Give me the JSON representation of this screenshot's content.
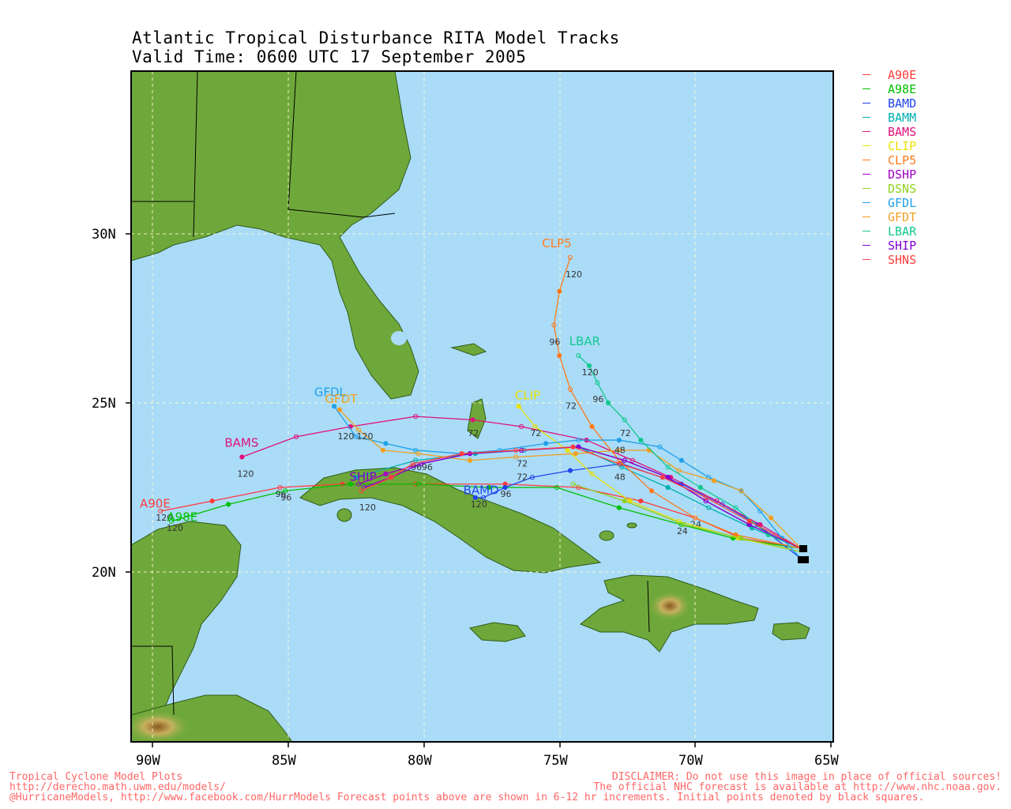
{
  "title_line1": "Atlantic Tropical Disturbance RITA Model Tracks",
  "title_line2": "Valid Time: 0600 UTC 17 September 2005",
  "colors": {
    "ocean": "#aadcf8",
    "land": "#6fa83a",
    "land_dark": "#4f8a2a",
    "highland": "#c8d890",
    "frame": "#000000"
  },
  "axes": {
    "lon_ticks": [
      "90W",
      "85W",
      "80W",
      "75W",
      "70W",
      "65W"
    ],
    "lat_ticks": [
      "30N",
      "25N",
      "20N"
    ]
  },
  "models": [
    {
      "name": "A90E",
      "color": "#ff3b3b"
    },
    {
      "name": "A98E",
      "color": "#00c000"
    },
    {
      "name": "BAMD",
      "color": "#2244ee"
    },
    {
      "name": "BAMM",
      "color": "#00b0b0"
    },
    {
      "name": "BAMS",
      "color": "#e0107a"
    },
    {
      "name": "CLIP",
      "color": "#e8e000"
    },
    {
      "name": "CLP5",
      "color": "#ff7a1a"
    },
    {
      "name": "DSHP",
      "color": "#a000c0"
    },
    {
      "name": "DSNS",
      "color": "#90d020"
    },
    {
      "name": "GFDL",
      "color": "#20a0e8"
    },
    {
      "name": "GFDT",
      "color": "#f0a020"
    },
    {
      "name": "LBAR",
      "color": "#10c890"
    },
    {
      "name": "SHIP",
      "color": "#8000d0"
    },
    {
      "name": "SHNS",
      "color": "#ff4040"
    }
  ],
  "map_data": {
    "tracks": [
      {
        "model": "A90E",
        "color": "#ff3b3b",
        "points": [
          [
            -66.1,
            20.7
          ],
          [
            -68.3,
            21.0
          ],
          [
            -70.0,
            21.6
          ],
          [
            -72.0,
            22.1
          ],
          [
            -74.3,
            22.5
          ],
          [
            -77.0,
            22.6
          ],
          [
            -80.3,
            22.6
          ],
          [
            -83.0,
            22.6
          ],
          [
            -85.3,
            22.5
          ],
          [
            -87.8,
            22.1
          ],
          [
            -89.7,
            21.8
          ]
        ],
        "tau_labels": [
          [
            "24",
            -70.0,
            21.6
          ],
          [
            "96",
            -85.3,
            22.5
          ],
          [
            "120",
            -89.7,
            21.8
          ]
        ]
      },
      {
        "model": "A98E",
        "color": "#00c000",
        "points": [
          [
            -66.1,
            20.7
          ],
          [
            -68.6,
            21.0
          ],
          [
            -70.5,
            21.4
          ],
          [
            -72.8,
            21.9
          ],
          [
            -75.1,
            22.5
          ],
          [
            -77.6,
            22.5
          ],
          [
            -80.2,
            22.6
          ],
          [
            -82.7,
            22.6
          ],
          [
            -85.1,
            22.4
          ],
          [
            -87.2,
            22.0
          ],
          [
            -89.3,
            21.5
          ]
        ],
        "tau_labels": [
          [
            "24",
            -70.5,
            21.4
          ],
          [
            "96",
            -85.1,
            22.4
          ],
          [
            "120",
            -89.3,
            21.5
          ]
        ]
      },
      {
        "model": "BAMD",
        "color": "#2244ee",
        "points": [
          [
            -66.1,
            20.4
          ],
          [
            -67.7,
            21.4
          ],
          [
            -69.0,
            22.0
          ],
          [
            -70.5,
            22.6
          ],
          [
            -72.7,
            23.2
          ],
          [
            -74.6,
            23.0
          ],
          [
            -76.0,
            22.8
          ],
          [
            -77.0,
            22.5
          ],
          [
            -77.8,
            22.2
          ],
          [
            -78.1,
            22.2
          ]
        ],
        "tau_labels": [
          [
            "96",
            -77.0,
            22.5
          ],
          [
            "120",
            -78.1,
            22.2
          ]
        ],
        "label": [
          "BAMD",
          -77.9,
          22.3
        ]
      },
      {
        "model": "BAMM",
        "color": "#00b0b0",
        "points": [
          [
            -66.1,
            20.7
          ],
          [
            -67.9,
            21.3
          ],
          [
            -69.5,
            21.9
          ],
          [
            -71.0,
            22.5
          ],
          [
            -72.7,
            23.1
          ],
          [
            -74.3,
            23.7
          ],
          [
            -76.3,
            23.6
          ],
          [
            -78.1,
            23.5
          ],
          [
            -80.3,
            23.3
          ],
          [
            -82.5,
            22.8
          ]
        ],
        "tau_labels": []
      },
      {
        "model": "BAMS",
        "color": "#e0107a",
        "points": [
          [
            -66.1,
            20.7
          ],
          [
            -67.6,
            21.4
          ],
          [
            -69.2,
            22.1
          ],
          [
            -70.9,
            22.8
          ],
          [
            -72.3,
            23.3
          ],
          [
            -74.0,
            23.9
          ],
          [
            -76.4,
            24.3
          ],
          [
            -78.2,
            24.5
          ],
          [
            -80.3,
            24.6
          ],
          [
            -82.7,
            24.3
          ],
          [
            -84.7,
            24.0
          ],
          [
            -86.7,
            23.4
          ]
        ],
        "tau_labels": [
          [
            "72",
            -78.2,
            24.3
          ],
          [
            "120",
            -86.7,
            23.1
          ]
        ],
        "label": [
          "BAMS",
          -86.7,
          23.7
        ]
      },
      {
        "model": "CLIP",
        "color": "#e8e000",
        "points": [
          [
            -66.1,
            20.6
          ],
          [
            -68.4,
            21.0
          ],
          [
            -70.6,
            21.5
          ],
          [
            -72.4,
            22.1
          ],
          [
            -73.8,
            22.9
          ],
          [
            -74.7,
            23.6
          ],
          [
            -75.9,
            24.3
          ],
          [
            -76.5,
            24.9
          ]
        ],
        "tau_labels": [
          [
            "72",
            -75.9,
            24.3
          ]
        ],
        "label": [
          "CLIP",
          -76.0,
          25.1
        ]
      },
      {
        "model": "CLP5",
        "color": "#ff7a1a",
        "points": [
          [
            -66.1,
            20.7
          ],
          [
            -68.5,
            21.1
          ],
          [
            -70.0,
            21.6
          ],
          [
            -71.6,
            22.4
          ],
          [
            -72.8,
            23.3
          ],
          [
            -73.8,
            24.3
          ],
          [
            -74.6,
            25.4
          ],
          [
            -75.0,
            26.4
          ],
          [
            -75.2,
            27.3
          ],
          [
            -75.0,
            28.3
          ],
          [
            -74.6,
            29.3
          ]
        ],
        "tau_labels": [
          [
            "48",
            -72.8,
            23.0
          ],
          [
            "72",
            -74.6,
            25.1
          ],
          [
            "96",
            -75.2,
            27.0
          ],
          [
            "120",
            -74.6,
            29.0
          ]
        ],
        "label": [
          "CLP5",
          -75.0,
          29.6
        ]
      },
      {
        "model": "DSHP",
        "color": "#a000c0",
        "points": [
          [
            -66.1,
            20.7
          ],
          [
            -68.0,
            21.4
          ],
          [
            -69.6,
            22.1
          ],
          [
            -71.0,
            22.8
          ],
          [
            -72.6,
            23.3
          ],
          [
            -74.3,
            23.7
          ],
          [
            -76.4,
            23.6
          ],
          [
            -78.3,
            23.5
          ],
          [
            -80.1,
            23.2
          ],
          [
            -81.4,
            22.9
          ],
          [
            -82.4,
            22.6
          ]
        ],
        "tau_labels": []
      },
      {
        "model": "DSNS",
        "color": "#90d020",
        "points": [
          [
            -66.1,
            20.6
          ],
          [
            -68.3,
            21.0
          ],
          [
            -70.4,
            21.4
          ],
          [
            -72.6,
            22.1
          ],
          [
            -74.5,
            22.6
          ]
        ],
        "tau_labels": []
      },
      {
        "model": "GFDL",
        "color": "#20a0e8",
        "points": [
          [
            -66.1,
            20.4
          ],
          [
            -66.8,
            21.0
          ],
          [
            -67.6,
            21.8
          ],
          [
            -68.3,
            22.4
          ],
          [
            -69.5,
            22.8
          ],
          [
            -70.5,
            23.3
          ],
          [
            -71.3,
            23.7
          ],
          [
            -72.8,
            23.9
          ],
          [
            -74.3,
            23.9
          ],
          [
            -75.5,
            23.8
          ],
          [
            -77.2,
            23.6
          ],
          [
            -78.6,
            23.5
          ],
          [
            -80.3,
            23.6
          ],
          [
            -81.4,
            23.8
          ],
          [
            -82.5,
            24.0
          ],
          [
            -83.3,
            24.9
          ]
        ],
        "tau_labels": [
          [
            "96",
            -80.3,
            23.3
          ],
          [
            "120",
            -83.0,
            24.2
          ]
        ],
        "label": [
          "GFDL",
          -83.4,
          25.2
        ]
      },
      {
        "model": "GFDT",
        "color": "#f0a020",
        "points": [
          [
            -66.1,
            20.7
          ],
          [
            -67.2,
            21.6
          ],
          [
            -68.3,
            22.4
          ],
          [
            -69.3,
            22.7
          ],
          [
            -70.6,
            23.0
          ],
          [
            -71.7,
            23.6
          ],
          [
            -72.8,
            23.6
          ],
          [
            -74.4,
            23.5
          ],
          [
            -76.6,
            23.4
          ],
          [
            -78.3,
            23.3
          ],
          [
            -80.2,
            23.5
          ],
          [
            -81.5,
            23.6
          ],
          [
            -82.4,
            24.2
          ],
          [
            -83.1,
            24.8
          ]
        ],
        "tau_labels": [
          [
            "48",
            -72.8,
            23.8
          ],
          [
            "96",
            -79.9,
            23.3
          ],
          [
            "120",
            -82.3,
            24.2
          ]
        ],
        "label": [
          "GFDT",
          -83.0,
          25.0
        ]
      },
      {
        "model": "LBAR",
        "color": "#10c890",
        "points": [
          [
            -66.1,
            20.7
          ],
          [
            -67.3,
            21.1
          ],
          [
            -68.5,
            21.9
          ],
          [
            -69.8,
            22.5
          ],
          [
            -71.0,
            23.1
          ],
          [
            -72.0,
            23.9
          ],
          [
            -72.6,
            24.5
          ],
          [
            -73.2,
            25.0
          ],
          [
            -73.6,
            25.6
          ],
          [
            -73.9,
            26.1
          ],
          [
            -74.3,
            26.4
          ]
        ],
        "tau_labels": [
          [
            "72",
            -72.6,
            24.3
          ],
          [
            "96",
            -73.6,
            25.3
          ],
          [
            "120",
            -74.0,
            26.1
          ]
        ],
        "label": [
          "LBAR",
          -74.0,
          26.7
        ]
      },
      {
        "model": "SHIP",
        "color": "#8000d0",
        "points": [
          [
            -66.1,
            20.7
          ],
          [
            -68.0,
            21.4
          ],
          [
            -69.6,
            22.1
          ],
          [
            -71.0,
            22.8
          ],
          [
            -72.6,
            23.3
          ],
          [
            -74.3,
            23.7
          ],
          [
            -76.4,
            23.6
          ],
          [
            -78.3,
            23.5
          ],
          [
            -80.1,
            23.2
          ],
          [
            -81.2,
            22.8
          ],
          [
            -82.2,
            22.5
          ]
        ],
        "tau_labels": [
          [
            "72",
            -76.4,
            23.4
          ]
        ],
        "label": [
          "SHIP",
          -82.1,
          22.7
        ]
      },
      {
        "model": "SHNS",
        "color": "#ff4040",
        "points": [
          [
            -66.1,
            20.7
          ],
          [
            -68.0,
            21.5
          ],
          [
            -69.6,
            22.2
          ],
          [
            -71.2,
            22.8
          ],
          [
            -72.8,
            23.2
          ],
          [
            -74.5,
            23.7
          ],
          [
            -76.6,
            23.6
          ],
          [
            -78.6,
            23.5
          ],
          [
            -80.4,
            23.2
          ],
          [
            -81.2,
            22.8
          ],
          [
            -82.3,
            22.4
          ]
        ],
        "tau_labels": [
          [
            "72",
            -76.4,
            23.0
          ],
          [
            "120",
            -82.2,
            22.1
          ]
        ]
      }
    ]
  },
  "footer_left": [
    "Tropical Cyclone Model Plots",
    "http://derecho.math.uwm.edu/models/",
    "@HurricaneModels, http://www.facebook.com/HurrModels  Forecast points above are shown in 6-12 hr increments.  Initial points denoted by black squares."
  ],
  "footer_right": [
    "DISCLAIMER: Do not use this image in place of official sources!",
    "The official NHC forecast is available at http://www.nhc.noaa.gov."
  ]
}
